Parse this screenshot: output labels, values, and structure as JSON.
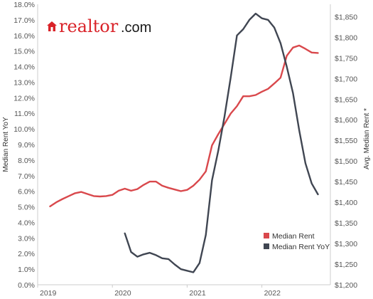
{
  "logo": {
    "brand": "realtor",
    "suffix": ".com"
  },
  "chart_data": {
    "type": "line",
    "x_ticks": [
      "2019",
      "2020",
      "2021",
      "2022"
    ],
    "x_range": [
      "2019-01",
      "2022-12"
    ],
    "left_axis": {
      "label": "Median Rent YoY",
      "ticks": [
        "0.0%",
        "1.0%",
        "2.0%",
        "3.0%",
        "4.0%",
        "5.0%",
        "6.0%",
        "7.0%",
        "8.0%",
        "9.0%",
        "10.0%",
        "11.0%",
        "12.0%",
        "13.0%",
        "14.0%",
        "15.0%",
        "16.0%",
        "17.0%",
        "18.0%"
      ],
      "ylim": [
        0,
        18
      ]
    },
    "right_axis": {
      "label": "Avg. Median Rent *",
      "ticks": [
        "$1,200",
        "$1,250",
        "$1,300",
        "$1,350",
        "$1,400",
        "$1,450",
        "$1,500",
        "$1,550",
        "$1,600",
        "$1,650",
        "$1,700",
        "$1,750",
        "$1,800",
        "$1,850"
      ],
      "ylim": [
        1200,
        1880
      ]
    },
    "series": [
      {
        "name": "Median Rent",
        "color": "#d9484c",
        "axis": "right",
        "x": [
          "2019-03",
          "2019-04",
          "2019-05",
          "2019-06",
          "2019-07",
          "2019-08",
          "2019-09",
          "2019-10",
          "2019-11",
          "2019-12",
          "2020-01",
          "2020-02",
          "2020-03",
          "2020-04",
          "2020-05",
          "2020-06",
          "2020-07",
          "2020-08",
          "2020-09",
          "2020-10",
          "2020-11",
          "2020-12",
          "2021-01",
          "2021-02",
          "2021-03",
          "2021-04",
          "2021-05",
          "2021-06",
          "2021-07",
          "2021-08",
          "2021-09",
          "2021-10",
          "2021-11",
          "2021-12",
          "2022-01",
          "2022-02",
          "2022-03",
          "2022-04",
          "2022-05",
          "2022-06",
          "2022-07",
          "2022-08",
          "2022-09",
          "2022-10"
        ],
        "values": [
          1390,
          1400,
          1408,
          1415,
          1422,
          1425,
          1420,
          1415,
          1414,
          1415,
          1418,
          1428,
          1433,
          1428,
          1432,
          1442,
          1450,
          1450,
          1440,
          1435,
          1431,
          1427,
          1430,
          1440,
          1455,
          1475,
          1538,
          1565,
          1590,
          1615,
          1633,
          1657,
          1657,
          1660,
          1668,
          1675,
          1688,
          1702,
          1755,
          1775,
          1780,
          1772,
          1763,
          1762
        ]
      },
      {
        "name": "Median Rent YoY",
        "color": "#404652",
        "axis": "left",
        "x": [
          "2020-03",
          "2020-04",
          "2020-05",
          "2020-06",
          "2020-07",
          "2020-08",
          "2020-09",
          "2020-10",
          "2020-11",
          "2020-12",
          "2021-01",
          "2021-02",
          "2021-03",
          "2021-04",
          "2021-05",
          "2021-06",
          "2021-07",
          "2021-08",
          "2021-09",
          "2021-10",
          "2021-11",
          "2021-12",
          "2022-01",
          "2022-02",
          "2022-03",
          "2022-04",
          "2022-05",
          "2022-06",
          "2022-07",
          "2022-08",
          "2022-09",
          "2022-10"
        ],
        "values": [
          3.3,
          2.1,
          1.8,
          1.95,
          2.05,
          1.9,
          1.7,
          1.65,
          1.3,
          1.0,
          0.9,
          0.8,
          1.4,
          3.2,
          6.7,
          8.6,
          10.8,
          13.3,
          16.0,
          16.4,
          17.0,
          17.4,
          17.1,
          17.0,
          16.5,
          15.5,
          14.0,
          12.3,
          9.9,
          7.8,
          6.5,
          5.8
        ]
      }
    ],
    "legend_position": "bottom-right",
    "grid": false
  }
}
